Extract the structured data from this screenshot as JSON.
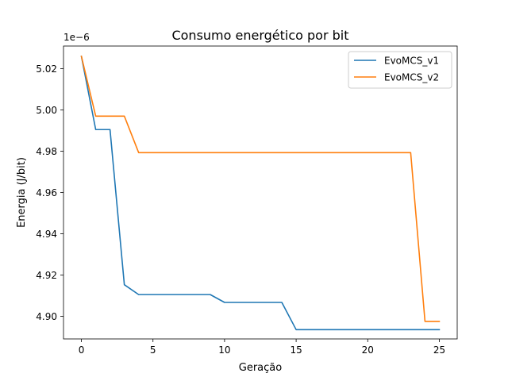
{
  "chart_data": {
    "type": "line",
    "title": "Consumo energético por bit",
    "xlabel": "Geração",
    "ylabel": "Energia (J/bit)",
    "y_offset_label": "1e−6",
    "xlim": [
      -1.25,
      26.25
    ],
    "ylim": [
      4.889,
      5.031
    ],
    "xticks": [
      0,
      5,
      10,
      15,
      20,
      25
    ],
    "yticks": [
      4.9,
      4.92,
      4.94,
      4.96,
      4.98,
      5.0,
      5.02
    ],
    "ytick_labels": [
      "4.90",
      "4.92",
      "4.94",
      "4.96",
      "4.98",
      "5.00",
      "5.02"
    ],
    "grid": false,
    "legend_position": "top-right",
    "x": [
      0,
      1,
      2,
      3,
      4,
      5,
      6,
      7,
      8,
      9,
      10,
      11,
      12,
      13,
      14,
      15,
      16,
      17,
      18,
      19,
      20,
      21,
      22,
      23,
      24,
      25
    ],
    "series": [
      {
        "name": "EvoMCS_v1",
        "color": "#1f77b4",
        "values": [
          5.026,
          4.9905,
          4.9905,
          4.9153,
          4.9105,
          4.9105,
          4.9105,
          4.9105,
          4.9105,
          4.9105,
          4.9067,
          4.9067,
          4.9067,
          4.9067,
          4.9067,
          4.8935,
          4.8935,
          4.8935,
          4.8935,
          4.8935,
          4.8935,
          4.8935,
          4.8935,
          4.8935,
          4.8935,
          4.8935
        ]
      },
      {
        "name": "EvoMCS_v2",
        "color": "#ff7f0e",
        "values": [
          5.026,
          4.997,
          4.997,
          4.997,
          4.9793,
          4.9793,
          4.9793,
          4.9793,
          4.9793,
          4.9793,
          4.9793,
          4.9793,
          4.9793,
          4.9793,
          4.9793,
          4.9793,
          4.9793,
          4.9793,
          4.9793,
          4.9793,
          4.9793,
          4.9793,
          4.9793,
          4.9793,
          4.8975,
          4.8975
        ]
      }
    ]
  }
}
